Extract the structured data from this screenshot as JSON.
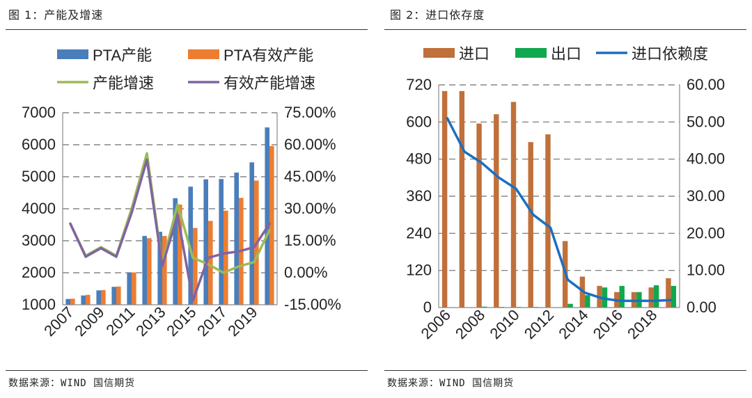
{
  "figures": [
    {
      "title": "图 1：产能及增速",
      "source": "数据来源：WIND  国信期货"
    },
    {
      "title": "图 2：进口依存度",
      "source": "数据来源：WIND  国信期货"
    }
  ],
  "chart_data": [
    {
      "type": "bar",
      "categories": [
        "2007",
        "2008",
        "2009",
        "2010",
        "2011",
        "2012",
        "2013",
        "2014",
        "2015",
        "2016",
        "2017",
        "2018",
        "2019",
        "2020"
      ],
      "x_tick_labels": [
        "2007",
        "2009",
        "2011",
        "2013",
        "2015",
        "2017",
        "2019"
      ],
      "series": [
        {
          "name": "PTA产能",
          "type": "bar",
          "axis": "left",
          "color": "#4a7ebb",
          "values": [
            1180,
            1290,
            1450,
            1560,
            2000,
            3150,
            3280,
            4330,
            4690,
            4920,
            4930,
            5130,
            5450,
            6540
          ]
        },
        {
          "name": "PTA有效产能",
          "type": "bar",
          "axis": "left",
          "color": "#ed7d31",
          "values": [
            1190,
            1310,
            1460,
            1570,
            2010,
            3080,
            3150,
            4130,
            3400,
            3620,
            3940,
            4340,
            4880,
            5960
          ]
        },
        {
          "name": "产能增速",
          "type": "line",
          "axis": "right",
          "color": "#9bbb59",
          "values": [
            23,
            8,
            12,
            8,
            30,
            56,
            4,
            32,
            7,
            4,
            0,
            3,
            5,
            20
          ]
        },
        {
          "name": "有效产能增速",
          "type": "line",
          "axis": "right",
          "color": "#8064a2",
          "values": [
            23,
            7.5,
            11.5,
            7.5,
            28,
            53,
            3,
            27,
            -13,
            7,
            9,
            10,
            12,
            23
          ]
        }
      ],
      "left_axis": {
        "min": 1000,
        "max": 7000,
        "step": 1000,
        "tick_labels": [
          "1000",
          "2000",
          "3000",
          "4000",
          "5000",
          "6000",
          "7000"
        ]
      },
      "right_axis": {
        "min": -15,
        "max": 75,
        "step": 15,
        "tick_labels": [
          "-15.00%",
          "0.00%",
          "15.00%",
          "30.00%",
          "45.00%",
          "60.00%",
          "75.00%"
        ]
      },
      "legend": [
        "PTA产能",
        "PTA有效产能",
        "产能增速",
        "有效产能增速"
      ],
      "legend_position": "top",
      "grid": "dashed horizontal"
    },
    {
      "type": "bar",
      "categories": [
        "2006",
        "2007",
        "2008",
        "2009",
        "2010",
        "2011",
        "2012",
        "2013",
        "2014",
        "2015",
        "2016",
        "2017",
        "2018",
        "2019"
      ],
      "x_tick_labels": [
        "2006",
        "2008",
        "2010",
        "2012",
        "2014",
        "2016",
        "2018"
      ],
      "series": [
        {
          "name": "进口",
          "type": "bar",
          "axis": "left",
          "color": "#c0703a",
          "values": [
            700,
            700,
            595,
            625,
            665,
            535,
            560,
            215,
            100,
            70,
            50,
            50,
            65,
            95
          ]
        },
        {
          "name": "出口",
          "type": "bar",
          "axis": "left",
          "color": "#10a84e",
          "values": [
            0,
            0,
            3,
            2,
            2,
            2,
            0,
            12,
            40,
            65,
            70,
            50,
            72,
            70
          ]
        },
        {
          "name": "进口依赖度",
          "type": "line",
          "axis": "right",
          "color": "#1a6fc3",
          "values": [
            51,
            42,
            39,
            35,
            32,
            25,
            21.5,
            7.5,
            4,
            2.5,
            1.8,
            1.8,
            1.8,
            2
          ]
        }
      ],
      "left_axis": {
        "min": 0,
        "max": 720,
        "step": 120,
        "tick_labels": [
          "0",
          "120",
          "240",
          "360",
          "480",
          "600",
          "720"
        ]
      },
      "right_axis": {
        "min": 0,
        "max": 60,
        "step": 10,
        "tick_labels": [
          "0.00",
          "10.00",
          "20.00",
          "30.00",
          "40.00",
          "50.00",
          "60.00"
        ]
      },
      "legend": [
        "进口",
        "出口",
        "进口依赖度"
      ],
      "legend_position": "top",
      "grid": "dashed horizontal"
    }
  ]
}
